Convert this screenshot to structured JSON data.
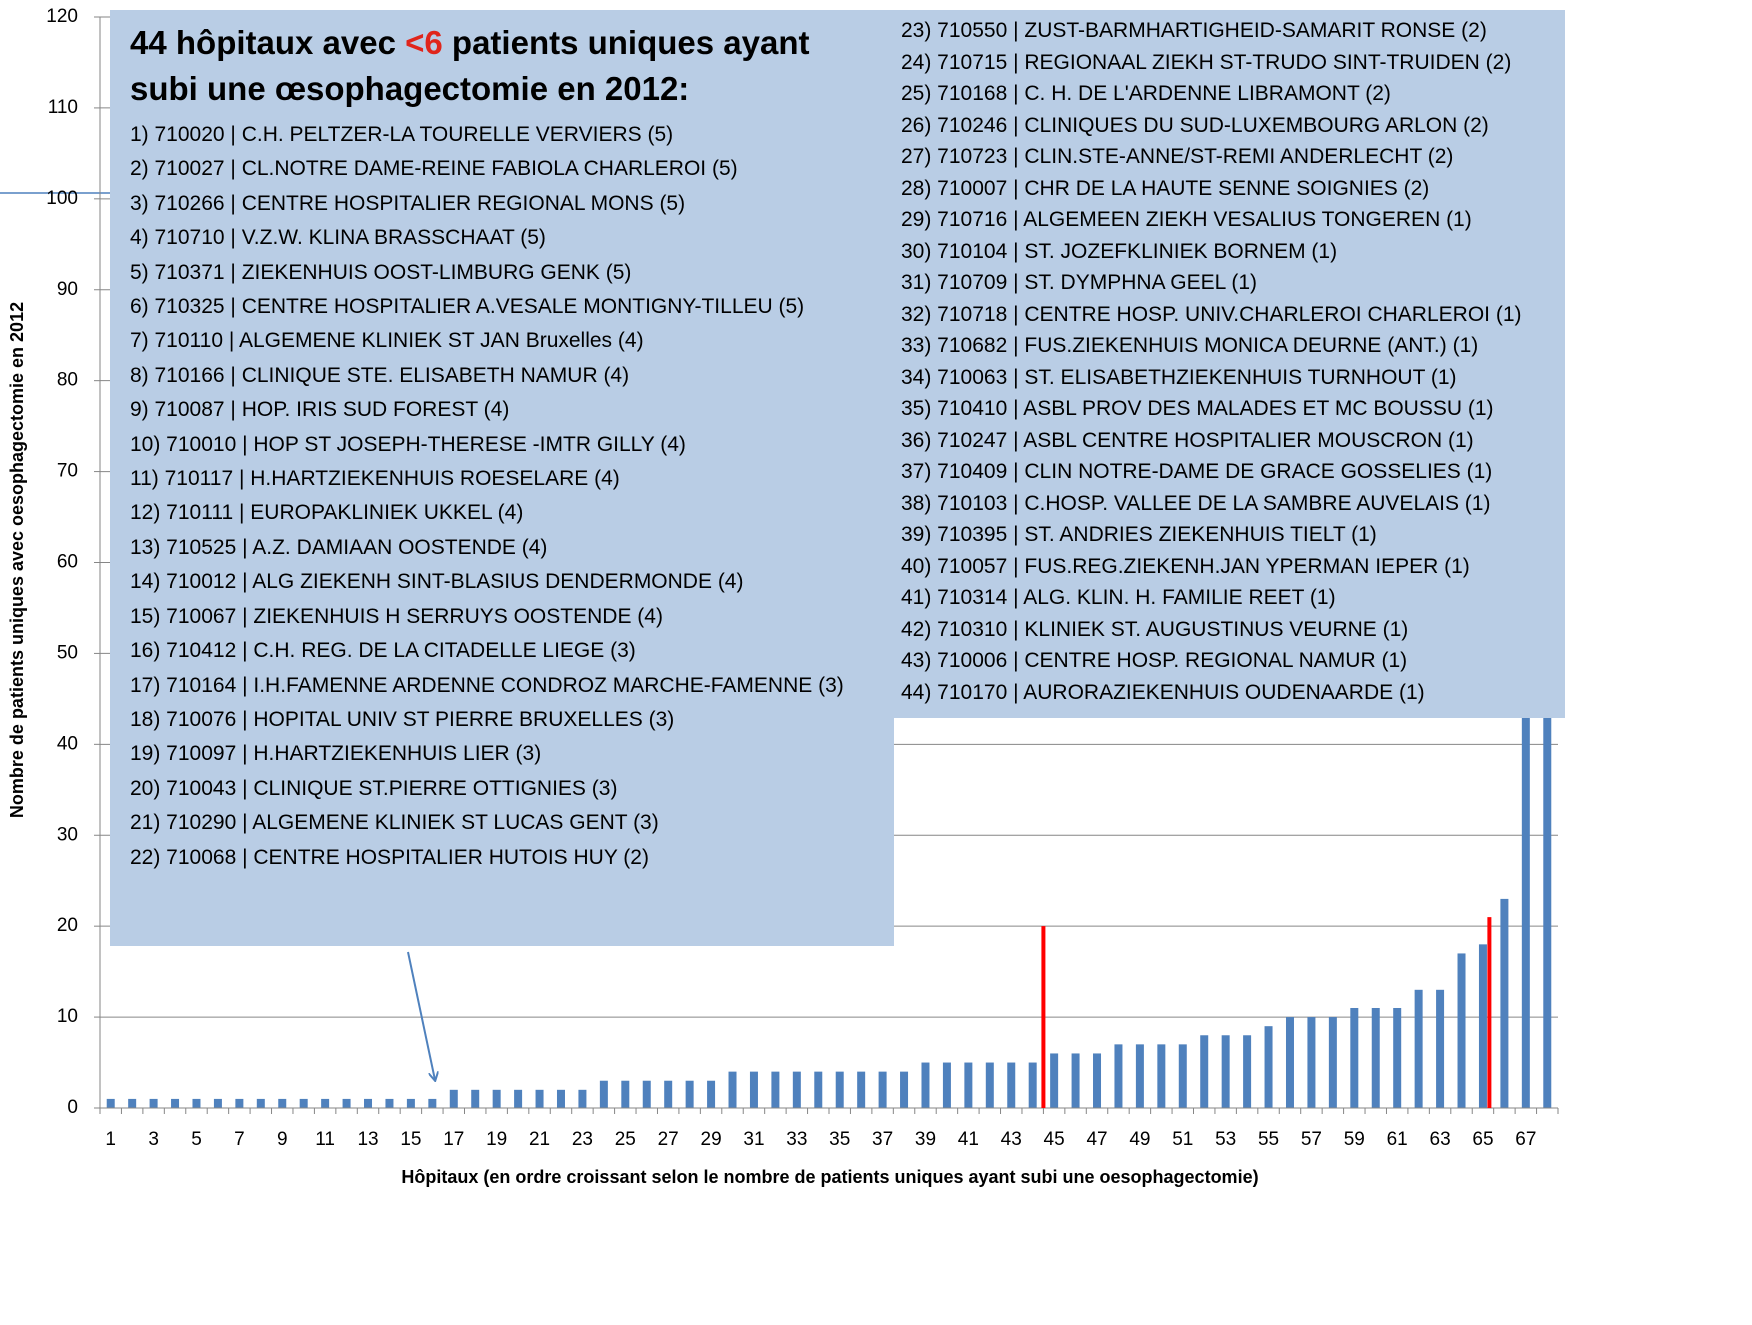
{
  "chart_data": {
    "type": "bar",
    "categories": [
      1,
      null,
      3,
      null,
      5,
      null,
      7,
      null,
      9,
      null,
      11,
      null,
      13,
      null,
      15,
      null,
      17,
      null,
      19,
      null,
      21,
      null,
      23,
      null,
      25,
      null,
      27,
      null,
      29,
      null,
      31,
      null,
      33,
      null,
      35,
      null,
      37,
      null,
      39,
      null,
      41,
      null,
      43,
      null,
      45,
      null,
      47,
      null,
      49,
      null,
      51,
      null,
      53,
      null,
      55,
      null,
      57,
      null,
      59,
      null,
      61,
      null,
      63,
      null,
      65,
      null,
      67,
      null
    ],
    "values": [
      1,
      1,
      1,
      1,
      1,
      1,
      1,
      1,
      1,
      1,
      1,
      1,
      1,
      1,
      1,
      1,
      2,
      2,
      2,
      2,
      2,
      2,
      2,
      3,
      3,
      3,
      3,
      3,
      3,
      4,
      4,
      4,
      4,
      4,
      4,
      4,
      4,
      4,
      5,
      5,
      5,
      5,
      5,
      5,
      6,
      6,
      6,
      7,
      7,
      7,
      7,
      8,
      8,
      8,
      9,
      10,
      10,
      10,
      11,
      11,
      11,
      13,
      13,
      17,
      18,
      23,
      50,
      65
    ],
    "color": "#4f81bd",
    "ylim": [
      0,
      120
    ],
    "yticks": [
      0,
      10,
      20,
      30,
      40,
      50,
      60,
      70,
      80,
      90,
      100,
      110,
      120
    ],
    "grid": true,
    "xlabel": "Hôpitaux (en ordre croissant selon le nombre de patients uniques ayant subi une oesophagectomie)",
    "ylabel": "Nombre de patients uniques avec oesophagectomie en 2012",
    "markers": [
      {
        "x": 44.5,
        "y": 20,
        "color": "#ff0000"
      },
      {
        "x": 65.3,
        "y": 21,
        "color": "#ff0000"
      }
    ],
    "annotation": {
      "title": [
        "44 hôpitaux avec ",
        "<6",
        " patients uniques ayant subi une œsophagectomie en 2012:"
      ],
      "items": [
        "1) 710020 | C.H. PELTZER-LA TOURELLE VERVIERS (5)",
        "2) 710027 | CL.NOTRE DAME-REINE FABIOLA CHARLEROI (5)",
        "3) 710266 | CENTRE HOSPITALIER REGIONAL MONS (5)",
        "4) 710710 | V.Z.W. KLINA BRASSCHAAT (5)",
        "5) 710371 | ZIEKENHUIS OOST-LIMBURG GENK (5)",
        "6) 710325 | CENTRE HOSPITALIER A.VESALE MONTIGNY-TILLEU (5)",
        "7) 710110 | ALGEMENE KLINIEK ST JAN Bruxelles (4)",
        "8) 710166 | CLINIQUE STE. ELISABETH NAMUR (4)",
        "9) 710087 | HOP. IRIS SUD FOREST (4)",
        "10) 710010 | HOP ST JOSEPH-THERESE -IMTR GILLY (4)",
        "11) 710117 | H.HARTZIEKENHUIS ROESELARE (4)",
        "12) 710111 | EUROPAKLINIEK UKKEL (4)",
        "13) 710525 | A.Z. DAMIAAN OOSTENDE (4)",
        "14) 710012 | ALG ZIEKENH SINT-BLASIUS DENDERMONDE (4)",
        "15) 710067 | ZIEKENHUIS H SERRUYS OOSTENDE (4)",
        "16) 710412 | C.H. REG. DE LA CITADELLE LIEGE (3)",
        "17) 710164 | I.H.FAMENNE ARDENNE CONDROZ MARCHE-FAMENNE (3)",
        "18) 710076 | HOPITAL UNIV ST PIERRE BRUXELLES (3)",
        "19) 710097 | H.HARTZIEKENHUIS LIER (3)",
        "20) 710043 | CLINIQUE ST.PIERRE OTTIGNIES (3)",
        "21) 710290 | ALGEMENE KLINIEK ST LUCAS GENT (3)",
        "22) 710068 | CENTRE HOSPITALIER HUTOIS HUY (2)",
        "23) 710550 | ZUST-BARMHARTIGHEID-SAMARIT RONSE (2)",
        "24) 710715 | REGIONAAL ZIEKH ST-TRUDO SINT-TRUIDEN (2)",
        "25) 710168 | C. H. DE L'ARDENNE LIBRAMONT (2)",
        "26) 710246 | CLINIQUES DU SUD-LUXEMBOURG ARLON (2)",
        "27) 710723 | CLIN.STE-ANNE/ST-REMI ANDERLECHT (2)",
        "28) 710007 | CHR DE LA HAUTE SENNE SOIGNIES (2)",
        "29) 710716 | ALGEMEEN ZIEKH VESALIUS TONGEREN (1)",
        "30) 710104 | ST. JOZEFKLINIEK BORNEM (1)",
        "31) 710709 | ST. DYMPHNA GEEL (1)",
        "32) 710718 | CENTRE HOSP. UNIV.CHARLEROI CHARLEROI (1)",
        "33) 710682 | FUS.ZIEKENHUIS MONICA DEURNE (ANT.) (1)",
        "34) 710063 | ST. ELISABETHZIEKENHUIS TURNHOUT (1)",
        "35) 710410 | ASBL PROV DES MALADES ET MC BOUSSU (1)",
        "36) 710247 | ASBL CENTRE HOSPITALIER MOUSCRON (1)",
        "37) 710409 | CLIN NOTRE-DAME DE GRACE GOSSELIES (1)",
        "38) 710103 | C.HOSP. VALLEE DE LA SAMBRE AUVELAIS (1)",
        "39) 710395 | ST. ANDRIES ZIEKENHUIS TIELT (1)",
        "40) 710057 | FUS.REG.ZIEKENH.JAN YPERMAN IEPER (1)",
        "41) 710314 | ALG. KLIN. H. FAMILIE REET (1)",
        "42) 710310 | KLINIEK ST. AUGUSTINUS VEURNE (1)",
        "43) 710006 | CENTRE HOSP. REGIONAL NAMUR (1)",
        "44) 710170 | AURORAZIEKENHUIS OUDENAARDE (1)"
      ]
    }
  }
}
